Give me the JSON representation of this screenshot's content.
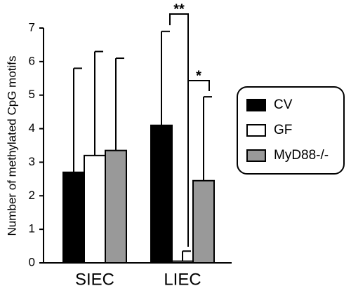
{
  "chart_data": {
    "type": "bar",
    "y_label": "Number of methylated CpG motifs",
    "categories": [
      "SIEC",
      "LIEC"
    ],
    "series": [
      {
        "name": "CV",
        "color": "#000000",
        "values": [
          2.7,
          4.1
        ],
        "errors": [
          3.1,
          2.8
        ]
      },
      {
        "name": "GF",
        "color": "#ffffff",
        "values": [
          3.2,
          0.05
        ],
        "errors": [
          3.1,
          0.3
        ]
      },
      {
        "name": "MyD88-/-",
        "color": "#999999",
        "values": [
          3.35,
          2.45
        ],
        "errors": [
          2.75,
          2.5
        ]
      }
    ],
    "ylim": [
      0,
      7
    ],
    "yticks": [
      0,
      1,
      2,
      3,
      4,
      5,
      6,
      7
    ],
    "annotations": [
      "**",
      "*"
    ]
  }
}
